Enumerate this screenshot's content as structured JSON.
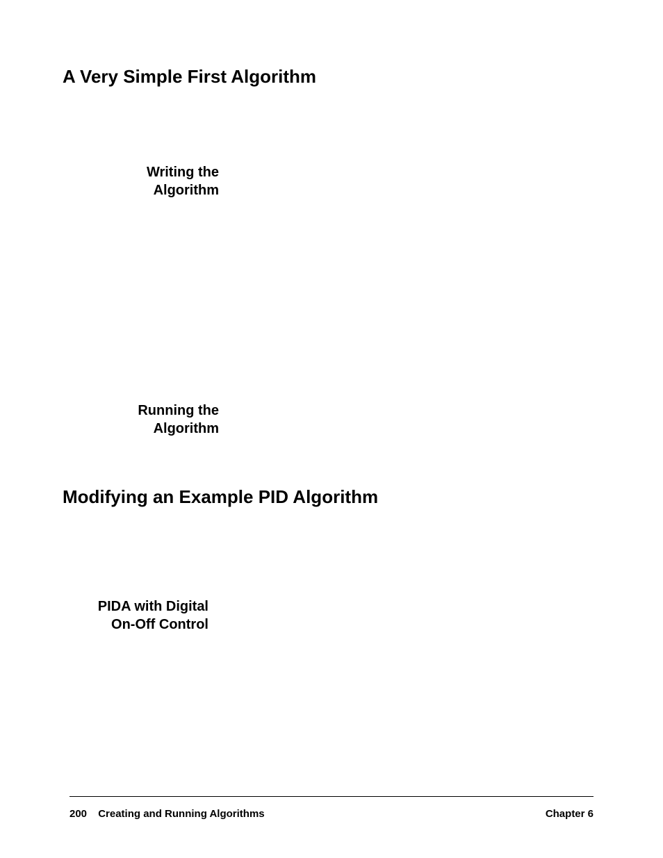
{
  "typography": {
    "body_font": "Arial, Helvetica, sans-serif",
    "heading_fontsize": 26,
    "subheading_fontsize": 20,
    "footer_fontsize": 15,
    "text_color": "#000000",
    "background_color": "#ffffff"
  },
  "section1": {
    "heading": "A Very Simple First Algorithm",
    "sub1_line1": "Writing the",
    "sub1_line2": "Algorithm",
    "sub2_line1": "Running the",
    "sub2_line2": "Algorithm"
  },
  "section2": {
    "heading": "Modifying an Example PID Algorithm",
    "sub1_line1": "PIDA with Digital",
    "sub1_line2": "On-Off Control"
  },
  "footer": {
    "page_number": "200",
    "chapter_title": "Creating and Running Algorithms",
    "chapter_label": "Chapter 6"
  }
}
